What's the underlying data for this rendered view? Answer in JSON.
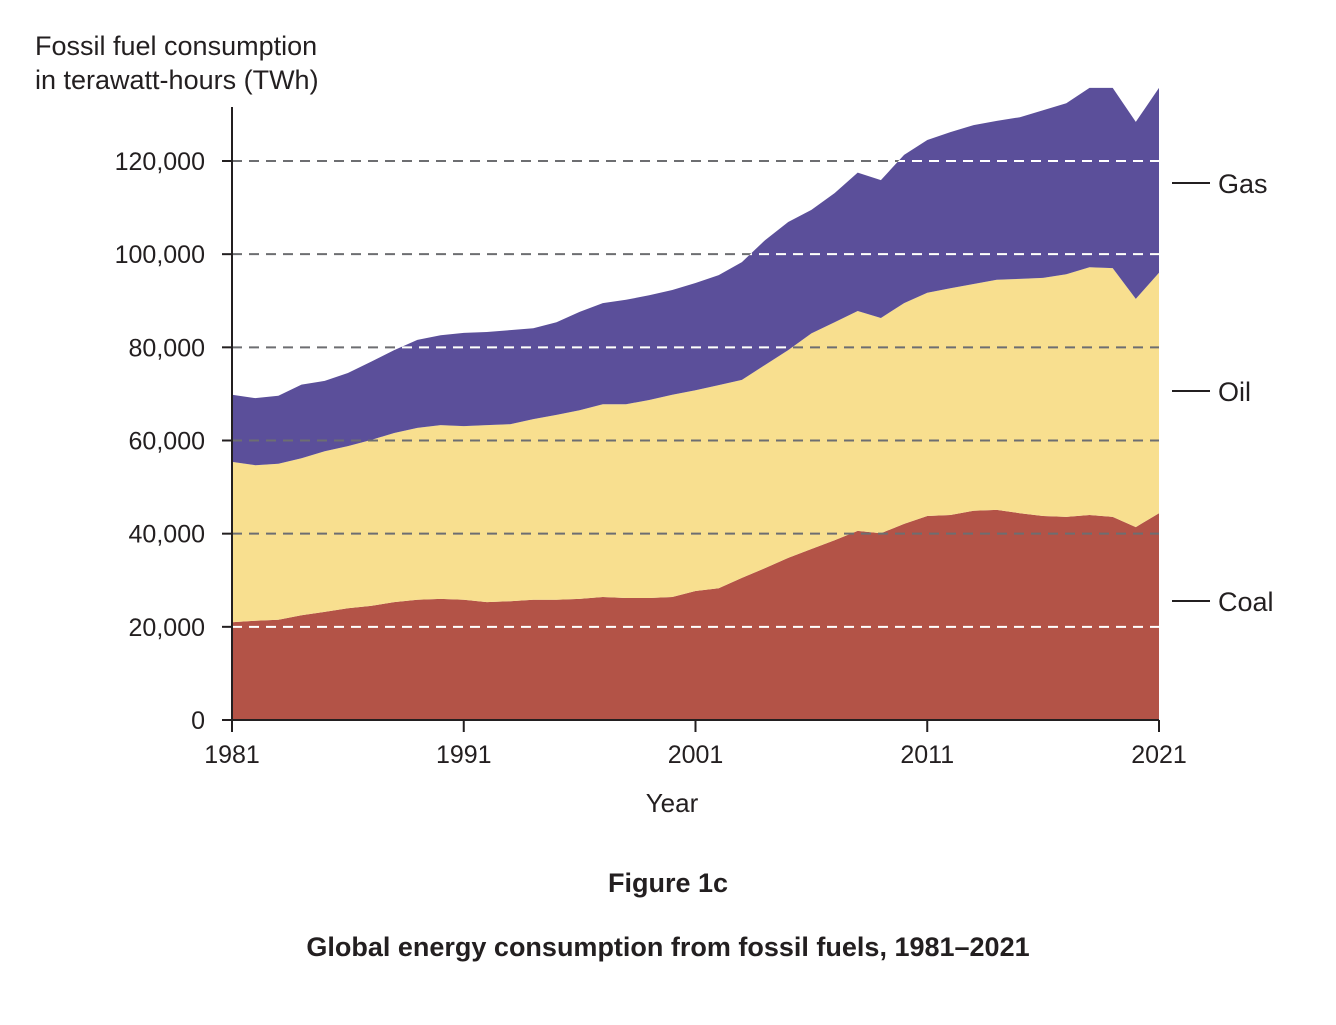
{
  "chart_data": {
    "type": "area",
    "stacked": true,
    "title": "Global energy consumption from fossil fuels, 1981–2021",
    "figure_label": "Figure 1c",
    "ylabel_lines": [
      "Fossil fuel consumption",
      "in terawatt-hours (TWh)"
    ],
    "xlabel": "Year",
    "xlim": [
      1981,
      2021
    ],
    "ylim": [
      0,
      135700
    ],
    "x_ticks": [
      "1981",
      "1991",
      "2001",
      "2011",
      "2021"
    ],
    "y_ticks": [
      "0",
      "20,000",
      "40,000",
      "60,000",
      "80,000",
      "100,000",
      "120,000"
    ],
    "grid": "horizontal dashed",
    "legend": "right (direct labels)",
    "x": [
      1981,
      1982,
      1983,
      1984,
      1985,
      1986,
      1987,
      1988,
      1989,
      1990,
      1991,
      1992,
      1993,
      1994,
      1995,
      1996,
      1997,
      1998,
      1999,
      2000,
      2001,
      2002,
      2003,
      2004,
      2005,
      2006,
      2007,
      2008,
      2009,
      2010,
      2011,
      2012,
      2013,
      2014,
      2015,
      2016,
      2017,
      2018,
      2019,
      2020,
      2021
    ],
    "series": [
      {
        "name": "Coal",
        "color": "#b35347",
        "values": [
          21000,
          21300,
          21500,
          22500,
          23200,
          24000,
          24500,
          25300,
          25800,
          26000,
          25800,
          25300,
          25500,
          25800,
          25800,
          26000,
          26400,
          26200,
          26200,
          26400,
          27700,
          28300,
          30500,
          32600,
          34800,
          36700,
          38600,
          40600,
          40100,
          42100,
          43800,
          44000,
          44900,
          45100,
          44400,
          43800,
          43600,
          44000,
          43600,
          41400,
          44400
        ]
      },
      {
        "name": "Oil",
        "color": "#f8df8f",
        "values": [
          34400,
          33400,
          33500,
          33700,
          34500,
          34800,
          35600,
          36300,
          36900,
          37300,
          37300,
          38000,
          38000,
          38800,
          39700,
          40500,
          41400,
          41600,
          42500,
          43400,
          43100,
          43600,
          42500,
          43600,
          44600,
          46300,
          46800,
          47200,
          46200,
          47400,
          47900,
          48700,
          48700,
          49400,
          50300,
          51100,
          52100,
          53200,
          53400,
          49000,
          51600
        ]
      },
      {
        "name": "Gas",
        "color": "#5b4f9a",
        "values": [
          14400,
          14400,
          14600,
          15800,
          15100,
          15700,
          16800,
          17800,
          18900,
          19300,
          20000,
          20000,
          20200,
          19500,
          19900,
          21100,
          21700,
          22400,
          22500,
          22500,
          23000,
          23600,
          25300,
          26800,
          27500,
          26500,
          27700,
          29700,
          29600,
          31800,
          32800,
          33500,
          34100,
          34100,
          34700,
          36000,
          36700,
          38500,
          38700,
          38000,
          39700
        ]
      }
    ]
  }
}
